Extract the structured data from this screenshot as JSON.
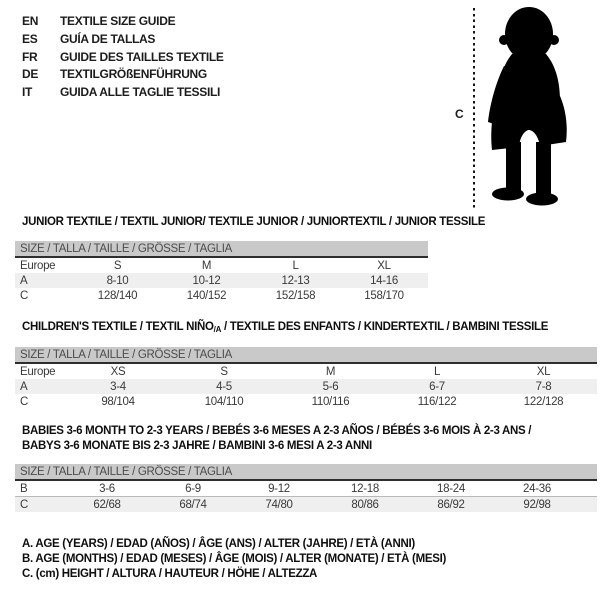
{
  "languages": [
    {
      "code": "EN",
      "title": "TEXTILE SIZE GUIDE"
    },
    {
      "code": "ES",
      "title": "GUÍA DE TALLAS"
    },
    {
      "code": "FR",
      "title": "GUIDE DES TAILLES TEXTILE"
    },
    {
      "code": "DE",
      "title": "TEXTILGRÖßENFÜHRUNG"
    },
    {
      "code": "IT",
      "title": "GUIDA ALLE TAGLIE TESSILI"
    }
  ],
  "figure": {
    "label": "C",
    "icon": "baby-silhouette-icon"
  },
  "sections": [
    {
      "title_lines": [
        [
          {
            "t": "JUNIOR TEXTILE / TEXTIL JUNIOR/ TEXTILE JUNIOR / JUNIORTEXTIL / JUNIOR TESSILE"
          }
        ]
      ],
      "table": {
        "header": "SIZE / TALLA / TAILLE / GRÖSSE / TAGLIA",
        "rows": [
          {
            "label": "Europe",
            "values": [
              "S",
              "M",
              "L",
              "XL"
            ],
            "shaded": false
          },
          {
            "label": "A",
            "values": [
              "8-10",
              "10-12",
              "12-13",
              "14-16"
            ],
            "shaded": true
          },
          {
            "label": "C",
            "values": [
              "128/140",
              "140/152",
              "152/158",
              "158/170"
            ],
            "shaded": false
          }
        ]
      }
    },
    {
      "title_lines": [
        [
          {
            "t": "CHILDREN'S TEXTILE / TEXTIL NIÑO"
          },
          {
            "t": "/A",
            "sub": true
          },
          {
            "t": " / TEXTILE DES ENFANTS / KINDERTEXTIL / BAMBINI TESSILE"
          }
        ]
      ],
      "table": {
        "header": "SIZE / TALLA / TAILLE / GRÖSSE / TAGLIA",
        "rows": [
          {
            "label": "Europe",
            "values": [
              "XS",
              "S",
              "M",
              "L",
              "XL"
            ],
            "shaded": false
          },
          {
            "label": "A",
            "values": [
              "3-4",
              "4-5",
              "5-6",
              "6-7",
              "7-8"
            ],
            "shaded": true
          },
          {
            "label": "C",
            "values": [
              "98/104",
              "104/110",
              "110/116",
              "116/122",
              "122/128"
            ],
            "shaded": false
          }
        ]
      }
    },
    {
      "title_lines": [
        [
          {
            "t": "BABIES 3-6 MONTH TO 2-3 YEARS / BEBÉS 3-6 MESES A 2-3 AÑOS / BÉBÉS 3-6 MOIS À 2-3 ANS /"
          }
        ],
        [
          {
            "t": "BABYS 3-6 MONATE BIS 2-3 JAHRE / BAMBINI 3-6 MESI A 2-3 ANNI"
          }
        ]
      ],
      "table": {
        "header": "SIZE / TALLA / TAILLE / GRÖSSE / TAGLIA",
        "rows": [
          {
            "label": "B",
            "values": [
              "3-6",
              "6-9",
              "9-12",
              "12-18",
              "18-24",
              "24-36"
            ],
            "shaded": false
          },
          {
            "label": "C",
            "values": [
              "62/68",
              "68/74",
              "74/80",
              "80/86",
              "86/92",
              "92/98"
            ],
            "shaded": true
          }
        ]
      }
    }
  ],
  "footnotes": [
    "A. AGE (YEARS) / EDAD (AÑOS) / ÂGE (ANS) / ALTER (JAHRE) / ETÀ (ANNI)",
    "B. AGE (MONTHS) / EDAD (MESES) / ÂGE (MOIS) / ALTER (MONATE) / ETÀ (MESI)",
    "C. (cm) HEIGHT / ALTURA / HAUTEUR / HÖHE / ALTEZZA"
  ],
  "colors": {
    "header_band": "#c9c9c9",
    "shaded_row": "#efefef",
    "header_text": "#4c4c4c",
    "rule": "#2e2e2e",
    "silhouette": "#000000"
  }
}
